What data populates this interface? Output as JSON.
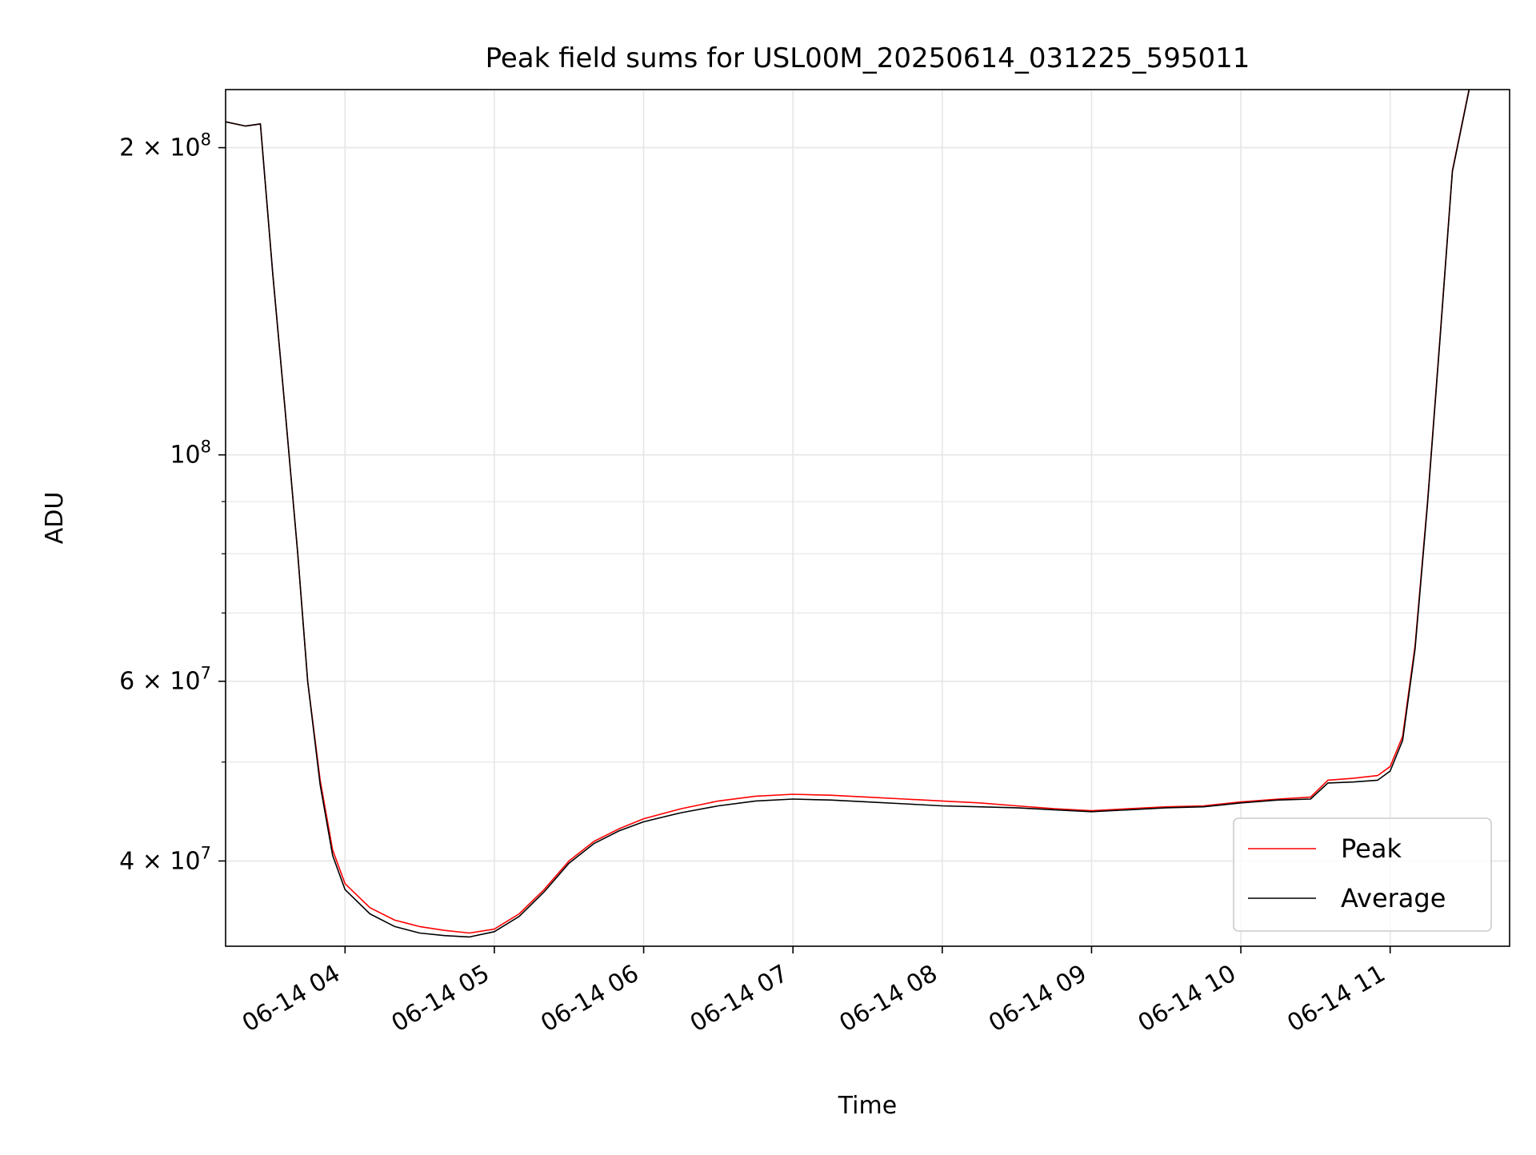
{
  "chart_data": {
    "type": "line",
    "title": "Peak field sums for USL00M_20250614_031225_595011",
    "xlabel": "Time",
    "ylabel": "ADU",
    "yscale": "log",
    "ylim": [
      33000000,
      228000000
    ],
    "xlim": [
      "2025-06-14 03:12",
      "2025-06-14 11:48"
    ],
    "grid": true,
    "legend_position": "lower-right",
    "x_ticks": [
      {
        "t": "2025-06-14 04:00",
        "label": "06-14 04"
      },
      {
        "t": "2025-06-14 05:00",
        "label": "06-14 05"
      },
      {
        "t": "2025-06-14 06:00",
        "label": "06-14 06"
      },
      {
        "t": "2025-06-14 07:00",
        "label": "06-14 07"
      },
      {
        "t": "2025-06-14 08:00",
        "label": "06-14 08"
      },
      {
        "t": "2025-06-14 09:00",
        "label": "06-14 09"
      },
      {
        "t": "2025-06-14 10:00",
        "label": "06-14 10"
      },
      {
        "t": "2025-06-14 11:00",
        "label": "06-14 11"
      }
    ],
    "y_ticks": [
      {
        "value": 40000000,
        "base": "4 × 10",
        "exp": "7"
      },
      {
        "value": 60000000,
        "base": "6 × 10",
        "exp": "7"
      },
      {
        "value": 100000000,
        "base": "10",
        "exp": "8"
      },
      {
        "value": 200000000,
        "base": "2 × 10",
        "exp": "8"
      }
    ],
    "y_minor_ticks": [
      50000000,
      70000000,
      80000000,
      90000000
    ],
    "series": [
      {
        "name": "Peak",
        "color": "#ff0000",
        "x": [
          "2025-06-14 03:12",
          "2025-06-14 03:20",
          "2025-06-14 03:26",
          "2025-06-14 03:31",
          "2025-06-14 03:36",
          "2025-06-14 03:41",
          "2025-06-14 03:45",
          "2025-06-14 03:50",
          "2025-06-14 03:55",
          "2025-06-14 04:00",
          "2025-06-14 04:10",
          "2025-06-14 04:20",
          "2025-06-14 04:30",
          "2025-06-14 04:40",
          "2025-06-14 04:50",
          "2025-06-14 05:00",
          "2025-06-14 05:10",
          "2025-06-14 05:20",
          "2025-06-14 05:30",
          "2025-06-14 05:40",
          "2025-06-14 05:50",
          "2025-06-14 06:00",
          "2025-06-14 06:15",
          "2025-06-14 06:30",
          "2025-06-14 06:45",
          "2025-06-14 07:00",
          "2025-06-14 07:15",
          "2025-06-14 07:30",
          "2025-06-14 07:45",
          "2025-06-14 08:00",
          "2025-06-14 08:15",
          "2025-06-14 08:30",
          "2025-06-14 08:45",
          "2025-06-14 09:00",
          "2025-06-14 09:15",
          "2025-06-14 09:30",
          "2025-06-14 09:45",
          "2025-06-14 10:00",
          "2025-06-14 10:15",
          "2025-06-14 10:28",
          "2025-06-14 10:35",
          "2025-06-14 10:45",
          "2025-06-14 10:55",
          "2025-06-14 11:00",
          "2025-06-14 11:05",
          "2025-06-14 11:10",
          "2025-06-14 11:15",
          "2025-06-14 11:20",
          "2025-06-14 11:25",
          "2025-06-14 11:32"
        ],
        "values": [
          212000000,
          210000000,
          211000000,
          150000000,
          110000000,
          80000000,
          60000000,
          48000000,
          41000000,
          38000000,
          36000000,
          35000000,
          34500000,
          34200000,
          34000000,
          34300000,
          35500000,
          37500000,
          40000000,
          41800000,
          43000000,
          44000000,
          45000000,
          45800000,
          46300000,
          46500000,
          46400000,
          46200000,
          46000000,
          45800000,
          45600000,
          45300000,
          45000000,
          44800000,
          45000000,
          45200000,
          45300000,
          45700000,
          46000000,
          46200000,
          48000000,
          48200000,
          48500000,
          49500000,
          53000000,
          65000000,
          90000000,
          130000000,
          190000000,
          230000000
        ]
      },
      {
        "name": "Average",
        "color": "#000000",
        "x": [
          "2025-06-14 03:12",
          "2025-06-14 03:20",
          "2025-06-14 03:26",
          "2025-06-14 03:31",
          "2025-06-14 03:36",
          "2025-06-14 03:41",
          "2025-06-14 03:45",
          "2025-06-14 03:50",
          "2025-06-14 03:55",
          "2025-06-14 04:00",
          "2025-06-14 04:10",
          "2025-06-14 04:20",
          "2025-06-14 04:30",
          "2025-06-14 04:40",
          "2025-06-14 04:50",
          "2025-06-14 05:00",
          "2025-06-14 05:10",
          "2025-06-14 05:20",
          "2025-06-14 05:30",
          "2025-06-14 05:40",
          "2025-06-14 05:50",
          "2025-06-14 06:00",
          "2025-06-14 06:15",
          "2025-06-14 06:30",
          "2025-06-14 06:45",
          "2025-06-14 07:00",
          "2025-06-14 07:15",
          "2025-06-14 07:30",
          "2025-06-14 07:45",
          "2025-06-14 08:00",
          "2025-06-14 08:15",
          "2025-06-14 08:30",
          "2025-06-14 08:45",
          "2025-06-14 09:00",
          "2025-06-14 09:15",
          "2025-06-14 09:30",
          "2025-06-14 09:45",
          "2025-06-14 10:00",
          "2025-06-14 10:15",
          "2025-06-14 10:28",
          "2025-06-14 10:35",
          "2025-06-14 10:45",
          "2025-06-14 10:55",
          "2025-06-14 11:00",
          "2025-06-14 11:05",
          "2025-06-14 11:10",
          "2025-06-14 11:15",
          "2025-06-14 11:20",
          "2025-06-14 11:25",
          "2025-06-14 11:32"
        ],
        "values": [
          212000000,
          210000000,
          211000000,
          150000000,
          110000000,
          80000000,
          60000000,
          47500000,
          40500000,
          37500000,
          35500000,
          34500000,
          34000000,
          33800000,
          33700000,
          34100000,
          35300000,
          37300000,
          39800000,
          41600000,
          42800000,
          43700000,
          44600000,
          45300000,
          45800000,
          46000000,
          45900000,
          45700000,
          45500000,
          45300000,
          45200000,
          45100000,
          44900000,
          44700000,
          44900000,
          45100000,
          45200000,
          45600000,
          45900000,
          46000000,
          47700000,
          47800000,
          48000000,
          49000000,
          52500000,
          64500000,
          89500000,
          129500000,
          189500000,
          229500000
        ]
      }
    ]
  }
}
